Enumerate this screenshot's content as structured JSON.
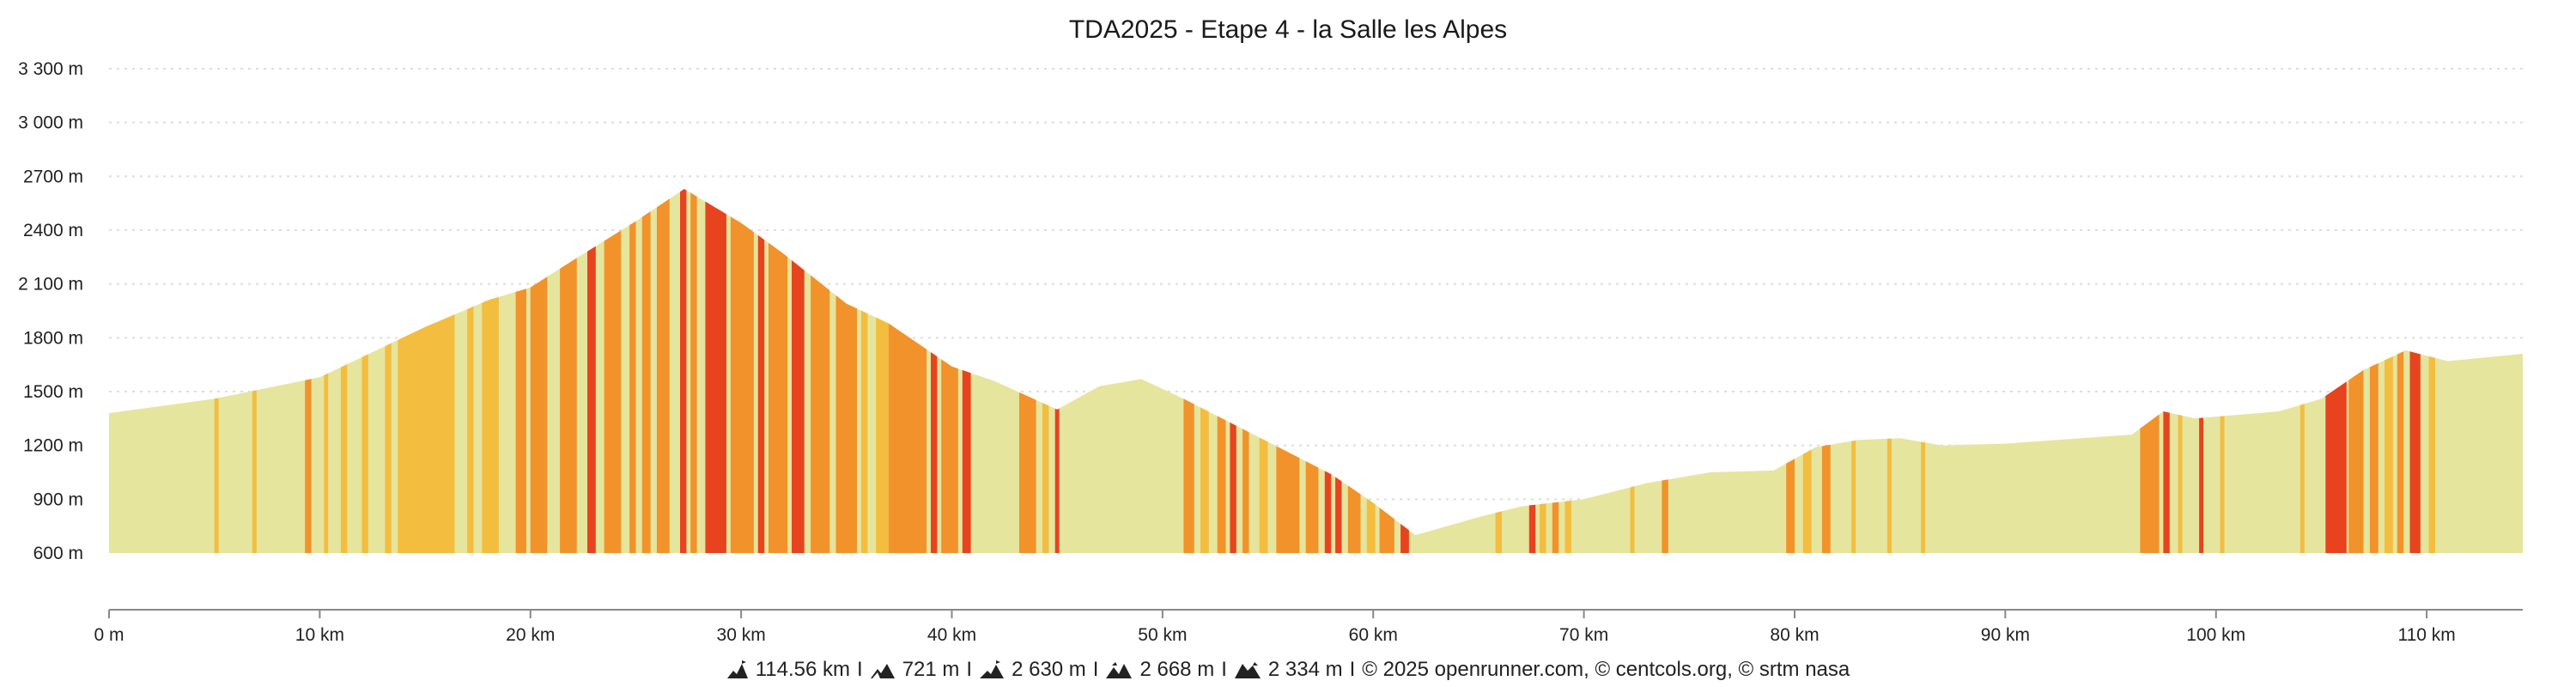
{
  "colors": {
    "flat": "#e5e59d",
    "light": "#f3bd3f",
    "medium": "#f2922a",
    "steep": "#e8431f",
    "grid": "#dddddd",
    "axis": "#888888"
  },
  "chart_data": {
    "type": "area",
    "title": "TDA2025 - Etape 4 - la Salle les Alpes",
    "xlabel": "",
    "ylabel": "",
    "xlim": [
      0,
      114.56
    ],
    "ylim": [
      600,
      3300
    ],
    "grid": true,
    "legend": "none",
    "y_ticks": [
      {
        "value": 600,
        "label": "600 m"
      },
      {
        "value": 900,
        "label": "900 m"
      },
      {
        "value": 1200,
        "label": "1200 m"
      },
      {
        "value": 1500,
        "label": "1500 m"
      },
      {
        "value": 1800,
        "label": "1800 m"
      },
      {
        "value": 2100,
        "label": "2 100 m"
      },
      {
        "value": 2400,
        "label": "2400 m"
      },
      {
        "value": 2700,
        "label": "2700 m"
      },
      {
        "value": 3000,
        "label": "3 000 m"
      },
      {
        "value": 3300,
        "label": "3 300 m"
      }
    ],
    "x_ticks": [
      {
        "value": 0,
        "label": "0 m"
      },
      {
        "value": 10,
        "label": "10 km"
      },
      {
        "value": 20,
        "label": "20 km"
      },
      {
        "value": 30,
        "label": "30 km"
      },
      {
        "value": 40,
        "label": "40 km"
      },
      {
        "value": 50,
        "label": "50 km"
      },
      {
        "value": 60,
        "label": "60 km"
      },
      {
        "value": 70,
        "label": "70 km"
      },
      {
        "value": 80,
        "label": "80 km"
      },
      {
        "value": 90,
        "label": "90 km"
      },
      {
        "value": 100,
        "label": "100 km"
      },
      {
        "value": 110,
        "label": "110 km"
      }
    ],
    "profile": [
      {
        "km": 0,
        "alt": 1380
      },
      {
        "km": 5,
        "alt": 1460
      },
      {
        "km": 10,
        "alt": 1580
      },
      {
        "km": 15,
        "alt": 1860
      },
      {
        "km": 18,
        "alt": 2010
      },
      {
        "km": 20,
        "alt": 2080
      },
      {
        "km": 22,
        "alt": 2230
      },
      {
        "km": 25,
        "alt": 2450
      },
      {
        "km": 27.3,
        "alt": 2630
      },
      {
        "km": 30,
        "alt": 2440
      },
      {
        "km": 32,
        "alt": 2270
      },
      {
        "km": 35,
        "alt": 1990
      },
      {
        "km": 37,
        "alt": 1880
      },
      {
        "km": 40,
        "alt": 1640
      },
      {
        "km": 42,
        "alt": 1560
      },
      {
        "km": 45,
        "alt": 1400
      },
      {
        "km": 47,
        "alt": 1530
      },
      {
        "km": 49,
        "alt": 1570
      },
      {
        "km": 51,
        "alt": 1460
      },
      {
        "km": 55,
        "alt": 1220
      },
      {
        "km": 58,
        "alt": 1040
      },
      {
        "km": 60,
        "alt": 880
      },
      {
        "km": 62,
        "alt": 700
      },
      {
        "km": 65,
        "alt": 800
      },
      {
        "km": 67,
        "alt": 860
      },
      {
        "km": 70,
        "alt": 900
      },
      {
        "km": 73,
        "alt": 990
      },
      {
        "km": 76,
        "alt": 1050
      },
      {
        "km": 79,
        "alt": 1060
      },
      {
        "km": 81,
        "alt": 1190
      },
      {
        "km": 83,
        "alt": 1230
      },
      {
        "km": 85,
        "alt": 1240
      },
      {
        "km": 87,
        "alt": 1200
      },
      {
        "km": 90,
        "alt": 1210
      },
      {
        "km": 96,
        "alt": 1260
      },
      {
        "km": 97.5,
        "alt": 1390
      },
      {
        "km": 99,
        "alt": 1350
      },
      {
        "km": 103,
        "alt": 1390
      },
      {
        "km": 105,
        "alt": 1460
      },
      {
        "km": 107,
        "alt": 1620
      },
      {
        "km": 109,
        "alt": 1730
      },
      {
        "km": 111,
        "alt": 1670
      },
      {
        "km": 114.56,
        "alt": 1710
      }
    ],
    "slope_segments": [
      {
        "from": 5.0,
        "to": 5.2,
        "level": "light"
      },
      {
        "from": 6.8,
        "to": 7.0,
        "level": "light"
      },
      {
        "from": 9.3,
        "to": 9.6,
        "level": "medium"
      },
      {
        "from": 10.2,
        "to": 10.4,
        "level": "light"
      },
      {
        "from": 11.0,
        "to": 11.3,
        "level": "light"
      },
      {
        "from": 12.0,
        "to": 12.3,
        "level": "light"
      },
      {
        "from": 13.1,
        "to": 13.4,
        "level": "light"
      },
      {
        "from": 13.7,
        "to": 16.4,
        "level": "light"
      },
      {
        "from": 17.0,
        "to": 17.3,
        "level": "light"
      },
      {
        "from": 17.7,
        "to": 18.5,
        "level": "light"
      },
      {
        "from": 19.3,
        "to": 19.8,
        "level": "medium"
      },
      {
        "from": 20.0,
        "to": 20.8,
        "level": "medium"
      },
      {
        "from": 21.4,
        "to": 22.2,
        "level": "medium"
      },
      {
        "from": 22.7,
        "to": 23.1,
        "level": "steep"
      },
      {
        "from": 23.5,
        "to": 24.3,
        "level": "medium"
      },
      {
        "from": 24.7,
        "to": 25.0,
        "level": "medium"
      },
      {
        "from": 25.3,
        "to": 25.7,
        "level": "medium"
      },
      {
        "from": 26.0,
        "to": 26.6,
        "level": "medium"
      },
      {
        "from": 27.1,
        "to": 27.4,
        "level": "steep"
      },
      {
        "from": 27.6,
        "to": 27.9,
        "level": "medium"
      },
      {
        "from": 28.3,
        "to": 29.3,
        "level": "steep"
      },
      {
        "from": 29.5,
        "to": 30.6,
        "level": "medium"
      },
      {
        "from": 30.8,
        "to": 31.1,
        "level": "steep"
      },
      {
        "from": 31.3,
        "to": 32.2,
        "level": "medium"
      },
      {
        "from": 32.4,
        "to": 33.0,
        "level": "steep"
      },
      {
        "from": 33.3,
        "to": 34.2,
        "level": "medium"
      },
      {
        "from": 34.5,
        "to": 35.5,
        "level": "medium"
      },
      {
        "from": 35.7,
        "to": 36.0,
        "level": "light"
      },
      {
        "from": 36.4,
        "to": 37.0,
        "level": "light"
      },
      {
        "from": 37.0,
        "to": 38.8,
        "level": "medium"
      },
      {
        "from": 39.0,
        "to": 39.3,
        "level": "steep"
      },
      {
        "from": 39.5,
        "to": 40.3,
        "level": "medium"
      },
      {
        "from": 40.5,
        "to": 40.9,
        "level": "steep"
      },
      {
        "from": 43.2,
        "to": 44.0,
        "level": "medium"
      },
      {
        "from": 44.3,
        "to": 44.6,
        "level": "light"
      },
      {
        "from": 44.9,
        "to": 45.1,
        "level": "steep"
      },
      {
        "from": 51.0,
        "to": 51.5,
        "level": "medium"
      },
      {
        "from": 51.8,
        "to": 52.2,
        "level": "light"
      },
      {
        "from": 52.6,
        "to": 53.0,
        "level": "medium"
      },
      {
        "from": 53.2,
        "to": 53.5,
        "level": "steep"
      },
      {
        "from": 53.8,
        "to": 54.1,
        "level": "medium"
      },
      {
        "from": 54.6,
        "to": 55.0,
        "level": "light"
      },
      {
        "from": 55.4,
        "to": 56.5,
        "level": "medium"
      },
      {
        "from": 56.8,
        "to": 57.4,
        "level": "medium"
      },
      {
        "from": 57.7,
        "to": 58.0,
        "level": "steep"
      },
      {
        "from": 58.2,
        "to": 58.5,
        "level": "steep"
      },
      {
        "from": 58.8,
        "to": 59.4,
        "level": "medium"
      },
      {
        "from": 59.7,
        "to": 60.1,
        "level": "light"
      },
      {
        "from": 60.3,
        "to": 61.0,
        "level": "medium"
      },
      {
        "from": 61.3,
        "to": 61.7,
        "level": "steep"
      },
      {
        "from": 65.8,
        "to": 66.1,
        "level": "light"
      },
      {
        "from": 67.4,
        "to": 67.7,
        "level": "steep"
      },
      {
        "from": 67.9,
        "to": 68.2,
        "level": "light"
      },
      {
        "from": 68.5,
        "to": 68.8,
        "level": "medium"
      },
      {
        "from": 69.1,
        "to": 69.4,
        "level": "light"
      },
      {
        "from": 72.2,
        "to": 72.4,
        "level": "light"
      },
      {
        "from": 73.7,
        "to": 74.0,
        "level": "medium"
      },
      {
        "from": 79.6,
        "to": 80.0,
        "level": "medium"
      },
      {
        "from": 80.4,
        "to": 80.8,
        "level": "light"
      },
      {
        "from": 81.3,
        "to": 81.7,
        "level": "medium"
      },
      {
        "from": 82.7,
        "to": 82.9,
        "level": "light"
      },
      {
        "from": 84.4,
        "to": 84.6,
        "level": "light"
      },
      {
        "from": 86.0,
        "to": 86.2,
        "level": "light"
      },
      {
        "from": 96.4,
        "to": 97.3,
        "level": "medium"
      },
      {
        "from": 97.5,
        "to": 97.8,
        "level": "steep"
      },
      {
        "from": 98.2,
        "to": 98.4,
        "level": "light"
      },
      {
        "from": 99.2,
        "to": 99.4,
        "level": "steep"
      },
      {
        "from": 100.2,
        "to": 100.4,
        "level": "light"
      },
      {
        "from": 104.0,
        "to": 104.2,
        "level": "light"
      },
      {
        "from": 105.2,
        "to": 106.2,
        "level": "steep"
      },
      {
        "from": 106.3,
        "to": 107.0,
        "level": "medium"
      },
      {
        "from": 107.3,
        "to": 107.7,
        "level": "medium"
      },
      {
        "from": 108.0,
        "to": 108.4,
        "level": "light"
      },
      {
        "from": 108.6,
        "to": 108.9,
        "level": "medium"
      },
      {
        "from": 109.2,
        "to": 109.7,
        "level": "steep"
      },
      {
        "from": 110.1,
        "to": 110.4,
        "level": "light"
      }
    ]
  },
  "footer": {
    "distance": "114.56 km",
    "ascent": "721 m",
    "max_altitude": "2 630 m",
    "elevation_gain": "2 668 m",
    "elevation_loss": "2 334 m",
    "credits": "© 2025 openrunner.com, © centcols.org, © srtm nasa",
    "separator": "I"
  }
}
